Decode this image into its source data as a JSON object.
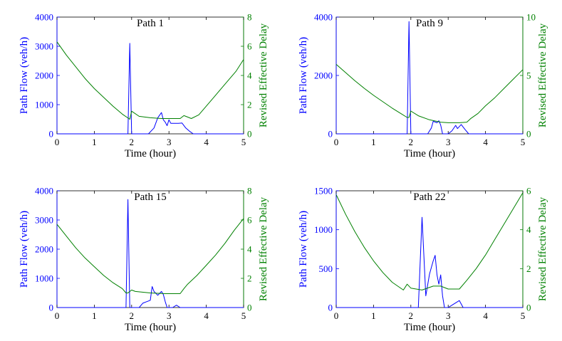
{
  "chart_data": [
    {
      "type": "line",
      "title": "Path 1",
      "xlabel": "Time (hour)",
      "ylabel_left": "Path Flow (veh/h)",
      "ylabel_right": "Revised Effective Delay",
      "xlim": [
        0,
        5
      ],
      "xticks": [
        0,
        1,
        2,
        3,
        4,
        5
      ],
      "ylim_left": [
        0,
        4000
      ],
      "yticks_left": [
        0,
        1000,
        2000,
        3000,
        4000
      ],
      "ylim_right": [
        0,
        8
      ],
      "yticks_right": [
        0,
        2,
        4,
        6,
        8
      ],
      "colors": {
        "flow": "#0000ff",
        "delay": "#008000"
      },
      "series": [
        {
          "name": "Path Flow",
          "axis": "left",
          "x": [
            0,
            1.85,
            1.9,
            1.95,
            2.0,
            2.05,
            2.45,
            2.6,
            2.7,
            2.8,
            2.85,
            2.9,
            2.95,
            3.0,
            3.05,
            3.15,
            3.25,
            3.35,
            3.45,
            3.55,
            3.65,
            5
          ],
          "y": [
            0,
            0,
            0,
            3100,
            0,
            0,
            0,
            200,
            550,
            730,
            480,
            400,
            280,
            480,
            360,
            360,
            360,
            370,
            200,
            90,
            0,
            0
          ]
        },
        {
          "name": "Revised Effective Delay",
          "axis": "right",
          "x": [
            0,
            0.25,
            0.5,
            0.75,
            1.0,
            1.25,
            1.5,
            1.75,
            1.95,
            2.0,
            2.2,
            2.5,
            2.8,
            3.0,
            3.3,
            3.4,
            3.5,
            3.6,
            3.8,
            4.0,
            4.2,
            4.5,
            4.8,
            5.0
          ],
          "y": [
            6.3,
            5.4,
            4.6,
            3.8,
            3.1,
            2.5,
            1.9,
            1.35,
            1.0,
            1.55,
            1.2,
            1.1,
            1.05,
            1.05,
            1.05,
            1.25,
            1.15,
            1.05,
            1.3,
            1.9,
            2.5,
            3.4,
            4.3,
            5.1
          ]
        }
      ]
    },
    {
      "type": "line",
      "title": "Path 9",
      "xlabel": "Time (hour)",
      "ylabel_left": "Path Flow (veh/h)",
      "ylabel_right": "Revised Effective Delay",
      "xlim": [
        0,
        5
      ],
      "xticks": [
        0,
        1,
        2,
        3,
        4,
        5
      ],
      "ylim_left": [
        0,
        4000
      ],
      "yticks_left": [
        0,
        2000,
        4000
      ],
      "ylim_right": [
        0,
        10
      ],
      "yticks_right": [
        0,
        5,
        10
      ],
      "colors": {
        "flow": "#0000ff",
        "delay": "#008000"
      },
      "series": [
        {
          "name": "Path Flow",
          "axis": "left",
          "x": [
            0,
            1.85,
            1.9,
            1.95,
            2.0,
            2.05,
            2.45,
            2.55,
            2.6,
            2.7,
            2.75,
            2.8,
            2.85,
            3.0,
            3.1,
            3.2,
            3.25,
            3.35,
            3.45,
            3.55,
            5
          ],
          "y": [
            0,
            0,
            0,
            3850,
            0,
            0,
            0,
            200,
            430,
            380,
            450,
            300,
            0,
            0,
            100,
            290,
            180,
            320,
            150,
            0,
            0
          ]
        },
        {
          "name": "Revised Effective Delay",
          "axis": "right",
          "x": [
            0,
            0.25,
            0.5,
            0.75,
            1.0,
            1.25,
            1.5,
            1.75,
            1.9,
            1.95,
            2.0,
            2.2,
            2.5,
            2.8,
            3.0,
            3.3,
            3.5,
            3.6,
            3.8,
            4.0,
            4.25,
            4.5,
            4.75,
            5.0
          ],
          "y": [
            5.95,
            5.25,
            4.55,
            3.9,
            3.3,
            2.75,
            2.2,
            1.7,
            1.4,
            1.4,
            1.95,
            1.55,
            1.2,
            1.0,
            0.95,
            0.95,
            1.0,
            1.3,
            1.75,
            2.4,
            3.1,
            3.9,
            4.7,
            5.5
          ]
        }
      ]
    },
    {
      "type": "line",
      "title": "Path 15",
      "xlabel": "Time (hour)",
      "ylabel_left": "Path Flow (veh/h)",
      "ylabel_right": "Revised Effective Delay",
      "xlim": [
        0,
        5
      ],
      "xticks": [
        0,
        1,
        2,
        3,
        4,
        5
      ],
      "ylim_left": [
        0,
        4000
      ],
      "yticks_left": [
        0,
        1000,
        2000,
        3000,
        4000
      ],
      "ylim_right": [
        0,
        8
      ],
      "yticks_right": [
        0,
        2,
        4,
        6,
        8
      ],
      "colors": {
        "flow": "#0000ff",
        "delay": "#008000"
      },
      "series": [
        {
          "name": "Path Flow",
          "axis": "left",
          "x": [
            0,
            1.8,
            1.85,
            1.9,
            1.95,
            2.0,
            2.2,
            2.3,
            2.4,
            2.5,
            2.55,
            2.6,
            2.7,
            2.8,
            2.85,
            2.9,
            2.95,
            3.1,
            3.2,
            3.3,
            5
          ],
          "y": [
            0,
            0,
            0,
            3700,
            0,
            0,
            0,
            150,
            200,
            250,
            720,
            550,
            420,
            550,
            450,
            200,
            0,
            0,
            80,
            0,
            0
          ]
        },
        {
          "name": "Revised Effective Delay",
          "axis": "right",
          "x": [
            0,
            0.25,
            0.5,
            0.75,
            1.0,
            1.25,
            1.5,
            1.75,
            1.85,
            1.9,
            2.0,
            2.1,
            2.5,
            2.9,
            3.0,
            3.3,
            3.4,
            3.5,
            3.75,
            4.0,
            4.25,
            4.5,
            4.75,
            5.0
          ],
          "y": [
            5.7,
            4.9,
            4.1,
            3.4,
            2.8,
            2.2,
            1.7,
            1.3,
            1.0,
            1.0,
            1.2,
            1.1,
            1.0,
            0.95,
            0.95,
            0.95,
            1.3,
            1.6,
            2.2,
            2.9,
            3.6,
            4.4,
            5.3,
            6.1
          ]
        }
      ]
    },
    {
      "type": "line",
      "title": "Path 22",
      "xlabel": "Time (hour)",
      "ylabel_left": "Path Flow (veh/h)",
      "ylabel_right": "Revised Effective Delay",
      "xlim": [
        0,
        5
      ],
      "xticks": [
        0,
        1,
        2,
        3,
        4,
        5
      ],
      "ylim_left": [
        0,
        1500
      ],
      "yticks_left": [
        0,
        500,
        1000,
        1500
      ],
      "ylim_right": [
        0,
        6
      ],
      "yticks_right": [
        0,
        2,
        4,
        6
      ],
      "colors": {
        "flow": "#0000ff",
        "delay": "#008000"
      },
      "series": [
        {
          "name": "Path Flow",
          "axis": "left",
          "x": [
            0,
            2.2,
            2.3,
            2.4,
            2.5,
            2.6,
            2.65,
            2.7,
            2.75,
            2.8,
            2.85,
            2.9,
            3.0,
            3.2,
            3.3,
            3.4,
            5
          ],
          "y": [
            0,
            0,
            1160,
            150,
            430,
            600,
            670,
            420,
            300,
            420,
            150,
            0,
            0,
            60,
            90,
            0,
            0
          ]
        },
        {
          "name": "Revised Effective Delay",
          "axis": "right",
          "x": [
            0,
            0.25,
            0.5,
            0.75,
            1.0,
            1.25,
            1.5,
            1.8,
            1.9,
            2.0,
            2.3,
            2.6,
            2.8,
            3.0,
            3.3,
            3.5,
            3.75,
            4.0,
            4.25,
            4.5,
            4.75,
            5.0
          ],
          "y": [
            5.8,
            4.8,
            3.9,
            3.1,
            2.4,
            1.8,
            1.3,
            0.9,
            1.2,
            1.0,
            0.9,
            1.1,
            1.1,
            0.95,
            0.95,
            1.4,
            2.0,
            2.7,
            3.5,
            4.3,
            5.1,
            5.9
          ]
        }
      ]
    }
  ]
}
